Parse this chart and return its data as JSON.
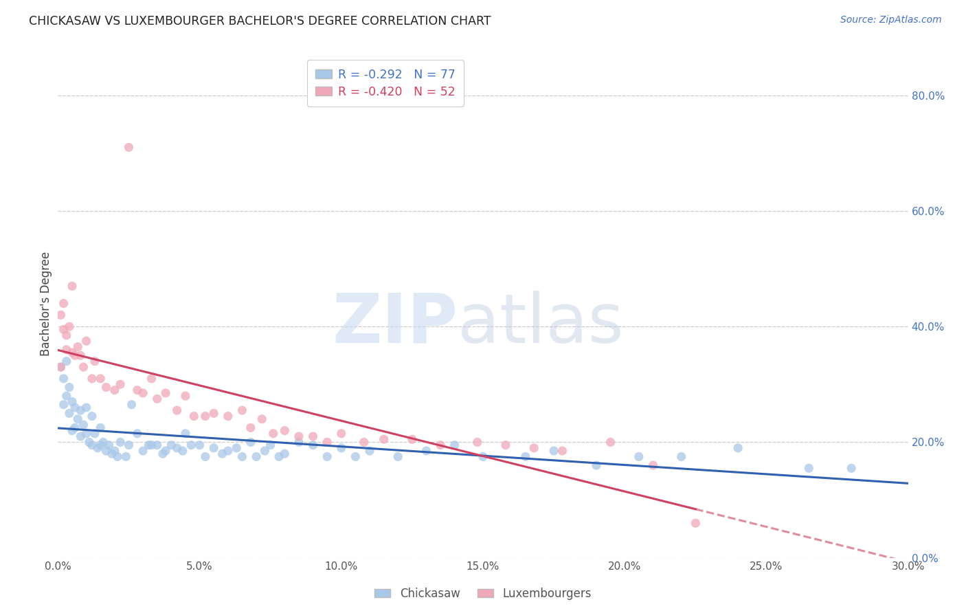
{
  "title": "CHICKASAW VS LUXEMBOURGER BACHELOR'S DEGREE CORRELATION CHART",
  "source": "Source: ZipAtlas.com",
  "ylabel": "Bachelor's Degree",
  "xlim": [
    0.0,
    0.3
  ],
  "ylim": [
    0.0,
    0.88
  ],
  "xlabel_vals": [
    0.0,
    0.05,
    0.1,
    0.15,
    0.2,
    0.25,
    0.3
  ],
  "xlabel_ticks": [
    "0.0%",
    "5.0%",
    "10.0%",
    "15.0%",
    "20.0%",
    "25.0%",
    "30.0%"
  ],
  "ylabel_vals": [
    0.0,
    0.2,
    0.4,
    0.6,
    0.8
  ],
  "ylabel_ticks": [
    "0.0%",
    "20.0%",
    "40.0%",
    "60.0%",
    "80.0%"
  ],
  "chickasaw_color": "#a8c8e8",
  "luxembourger_color": "#f0a8b8",
  "chickasaw_line_color": "#3060b0",
  "luxembourger_line_color": "#d04060",
  "R_chickasaw": -0.292,
  "N_chickasaw": 77,
  "R_luxembourger": -0.42,
  "N_luxembourger": 52,
  "chickasaw_x": [
    0.001,
    0.002,
    0.002,
    0.003,
    0.003,
    0.004,
    0.004,
    0.005,
    0.005,
    0.006,
    0.006,
    0.007,
    0.008,
    0.008,
    0.009,
    0.01,
    0.01,
    0.011,
    0.012,
    0.012,
    0.013,
    0.014,
    0.015,
    0.015,
    0.016,
    0.017,
    0.018,
    0.019,
    0.02,
    0.021,
    0.022,
    0.024,
    0.025,
    0.026,
    0.028,
    0.03,
    0.032,
    0.033,
    0.035,
    0.037,
    0.038,
    0.04,
    0.042,
    0.044,
    0.045,
    0.047,
    0.05,
    0.052,
    0.055,
    0.058,
    0.06,
    0.063,
    0.065,
    0.068,
    0.07,
    0.073,
    0.075,
    0.078,
    0.08,
    0.085,
    0.09,
    0.095,
    0.1,
    0.105,
    0.11,
    0.12,
    0.13,
    0.14,
    0.15,
    0.165,
    0.175,
    0.19,
    0.205,
    0.22,
    0.24,
    0.265,
    0.28
  ],
  "chickasaw_y": [
    0.33,
    0.31,
    0.265,
    0.28,
    0.34,
    0.295,
    0.25,
    0.27,
    0.22,
    0.26,
    0.225,
    0.24,
    0.255,
    0.21,
    0.23,
    0.26,
    0.215,
    0.2,
    0.245,
    0.195,
    0.215,
    0.19,
    0.195,
    0.225,
    0.2,
    0.185,
    0.195,
    0.18,
    0.185,
    0.175,
    0.2,
    0.175,
    0.195,
    0.265,
    0.215,
    0.185,
    0.195,
    0.195,
    0.195,
    0.18,
    0.185,
    0.195,
    0.19,
    0.185,
    0.215,
    0.195,
    0.195,
    0.175,
    0.19,
    0.18,
    0.185,
    0.19,
    0.175,
    0.2,
    0.175,
    0.185,
    0.195,
    0.175,
    0.18,
    0.2,
    0.195,
    0.175,
    0.19,
    0.175,
    0.185,
    0.175,
    0.185,
    0.195,
    0.175,
    0.175,
    0.185,
    0.16,
    0.175,
    0.175,
    0.19,
    0.155,
    0.155
  ],
  "luxembourger_x": [
    0.001,
    0.001,
    0.002,
    0.002,
    0.003,
    0.003,
    0.004,
    0.005,
    0.005,
    0.006,
    0.007,
    0.008,
    0.009,
    0.01,
    0.012,
    0.013,
    0.015,
    0.017,
    0.02,
    0.022,
    0.025,
    0.028,
    0.03,
    0.033,
    0.035,
    0.038,
    0.042,
    0.045,
    0.048,
    0.052,
    0.055,
    0.06,
    0.065,
    0.068,
    0.072,
    0.076,
    0.08,
    0.085,
    0.09,
    0.095,
    0.1,
    0.108,
    0.115,
    0.125,
    0.135,
    0.148,
    0.158,
    0.168,
    0.178,
    0.195,
    0.21,
    0.225
  ],
  "luxembourger_y": [
    0.33,
    0.42,
    0.395,
    0.44,
    0.385,
    0.36,
    0.4,
    0.355,
    0.47,
    0.35,
    0.365,
    0.35,
    0.33,
    0.375,
    0.31,
    0.34,
    0.31,
    0.295,
    0.29,
    0.3,
    0.71,
    0.29,
    0.285,
    0.31,
    0.275,
    0.285,
    0.255,
    0.28,
    0.245,
    0.245,
    0.25,
    0.245,
    0.255,
    0.225,
    0.24,
    0.215,
    0.22,
    0.21,
    0.21,
    0.2,
    0.215,
    0.2,
    0.205,
    0.205,
    0.195,
    0.2,
    0.195,
    0.19,
    0.185,
    0.2,
    0.16,
    0.06
  ]
}
